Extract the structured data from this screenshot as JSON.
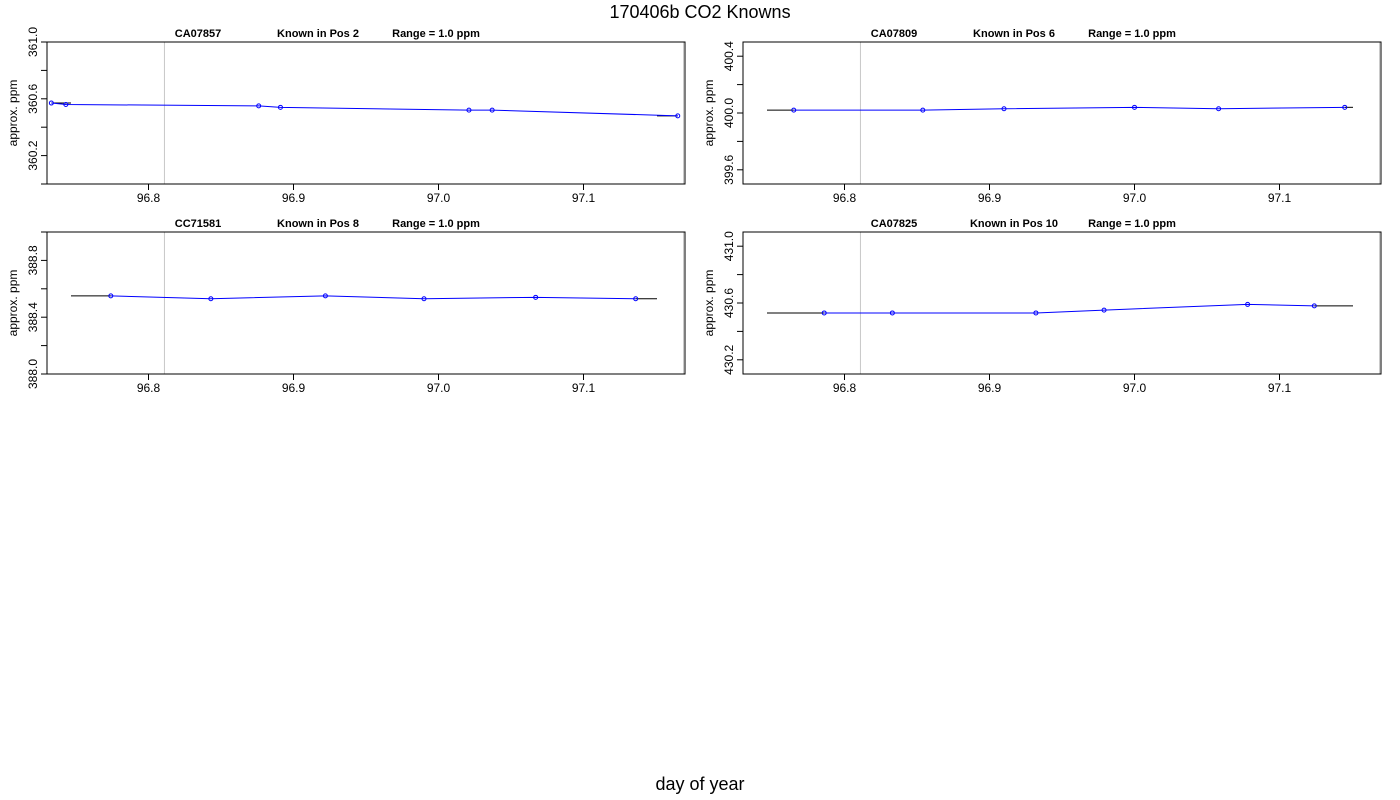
{
  "figure": {
    "title": "170406b   CO2 Knowns",
    "xlabel": "day of year"
  },
  "chart_data": [
    {
      "type": "line",
      "title_parts": [
        "CA07857",
        "Known in Pos 2",
        "Range = 1.0 ppm"
      ],
      "ylabel": "approx. ppm",
      "xlim": [
        96.73,
        97.17
      ],
      "ylim": [
        360.0,
        361.0
      ],
      "yticks": [
        "360.2",
        "360.6",
        "361.0"
      ],
      "xticks": [
        "96.8",
        "96.9",
        "97.0",
        "97.1"
      ],
      "vlines": [
        96.811,
        97.169
      ],
      "series": [
        {
          "x": [
            96.733,
            96.743,
            96.876,
            96.891,
            97.021,
            97.037,
            97.165
          ],
          "values": [
            360.57,
            360.56,
            360.55,
            360.54,
            360.52,
            360.52,
            360.48
          ]
        }
      ]
    },
    {
      "type": "line",
      "title_parts": [
        "CA07809",
        "Known in Pos 6",
        "Range = 1.0 ppm"
      ],
      "ylabel": "approx. ppm",
      "xlim": [
        96.73,
        97.17
      ],
      "ylim": [
        399.5,
        400.5
      ],
      "yticks": [
        "399.6",
        "400.0",
        "400.4"
      ],
      "xticks": [
        "96.8",
        "96.9",
        "97.0",
        "97.1"
      ],
      "vlines": [
        96.811,
        97.169
      ],
      "series": [
        {
          "x": [
            96.765,
            96.854,
            96.91,
            97.0,
            97.058,
            97.145
          ],
          "values": [
            400.02,
            400.02,
            400.03,
            400.04,
            400.03,
            400.04
          ]
        }
      ]
    },
    {
      "type": "line",
      "title_parts": [
        "CC71581",
        "Known in Pos 8",
        "Range = 1.0 ppm"
      ],
      "ylabel": "approx. ppm",
      "xlim": [
        96.73,
        97.17
      ],
      "ylim": [
        388.0,
        389.0
      ],
      "yticks": [
        "388.0",
        "388.4",
        "388.8"
      ],
      "xticks": [
        "96.8",
        "96.9",
        "97.0",
        "97.1"
      ],
      "vlines": [
        96.811,
        97.169
      ],
      "series": [
        {
          "x": [
            96.774,
            96.843,
            96.922,
            96.99,
            97.067,
            97.136
          ],
          "values": [
            388.55,
            388.53,
            388.55,
            388.53,
            388.54,
            388.53
          ]
        }
      ]
    },
    {
      "type": "line",
      "title_parts": [
        "CA07825",
        "Known in Pos 10",
        "Range = 1.0 ppm"
      ],
      "ylabel": "approx. ppm",
      "xlim": [
        96.73,
        97.17
      ],
      "ylim": [
        430.1,
        431.1
      ],
      "yticks": [
        "430.2",
        "430.6",
        "431.0"
      ],
      "xticks": [
        "96.8",
        "96.9",
        "97.0",
        "97.1"
      ],
      "vlines": [
        96.811,
        97.169
      ],
      "series": [
        {
          "x": [
            96.786,
            96.833,
            96.932,
            96.979,
            97.078,
            97.124
          ],
          "values": [
            430.53,
            430.53,
            430.53,
            430.55,
            430.59,
            430.58
          ]
        }
      ]
    }
  ],
  "colors": {
    "series_line": "#0000ff",
    "ref_line": "#000000",
    "vline": "#c8c8c8",
    "axis": "#000000"
  }
}
